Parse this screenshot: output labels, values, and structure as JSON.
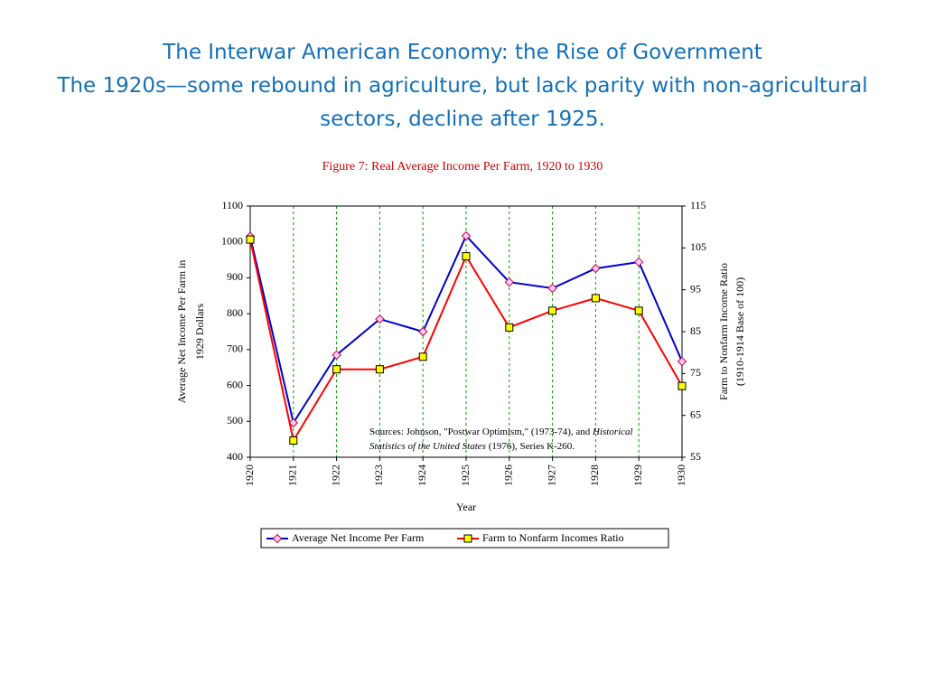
{
  "slide": {
    "title": "The Interwar American Economy: the Rise of Government",
    "subtitle": "The 1920s—some rebound in agriculture, but lack parity with non-agricultural sectors, decline after 1925."
  },
  "chart_data": {
    "type": "line",
    "title": "Figure 7: Real Average Income Per Farm, 1920 to 1930",
    "xlabel": "Year",
    "ylabel": [
      "Average Net Income Per Farm in",
      "1929 Dollars"
    ],
    "y2label": [
      "Farm to Nonfarm Income Ratio",
      "(1910-1914 Base of 100)"
    ],
    "categories": [
      "1920",
      "1921",
      "1922",
      "1923",
      "1924",
      "1925",
      "1926",
      "1927",
      "1928",
      "1929",
      "1930"
    ],
    "series": [
      {
        "name": "Average Net Income Per Farm",
        "color": "#0000cc",
        "marker": "diamond",
        "marker_color": "#ffccff",
        "marker_edge": "#cc0033",
        "values": [
          1015,
          496,
          685,
          785,
          750,
          1017,
          888,
          871,
          926,
          944,
          667
        ]
      },
      {
        "name": "Farm to Nonfarm Incomes Ratio",
        "color": "#ff0000",
        "marker": "square",
        "marker_color": "#ffff00",
        "marker_edge": "#000000",
        "axis": "y2",
        "values": [
          107,
          59,
          76,
          76,
          79,
          103,
          86,
          90,
          93,
          90,
          72
        ]
      }
    ],
    "ylim": [
      400,
      1100
    ],
    "yticks": [
      400,
      500,
      600,
      700,
      800,
      900,
      1000,
      1100
    ],
    "y2lim": [
      55,
      115
    ],
    "y2ticks": [
      55,
      65,
      75,
      85,
      95,
      105,
      115
    ],
    "grid": "x",
    "grid_color": "#00a000",
    "title_color": "#cc0000",
    "annotation": [
      [
        {
          "text": "Sources: Johnson, \"Postwar Optimism,\" (1973-74), and "
        },
        {
          "text": "Historical",
          "italic": true
        }
      ],
      [
        {
          "text": "Statistics of the United States",
          "italic": true
        },
        {
          "text": " (1976), Series K-260."
        }
      ]
    ]
  }
}
